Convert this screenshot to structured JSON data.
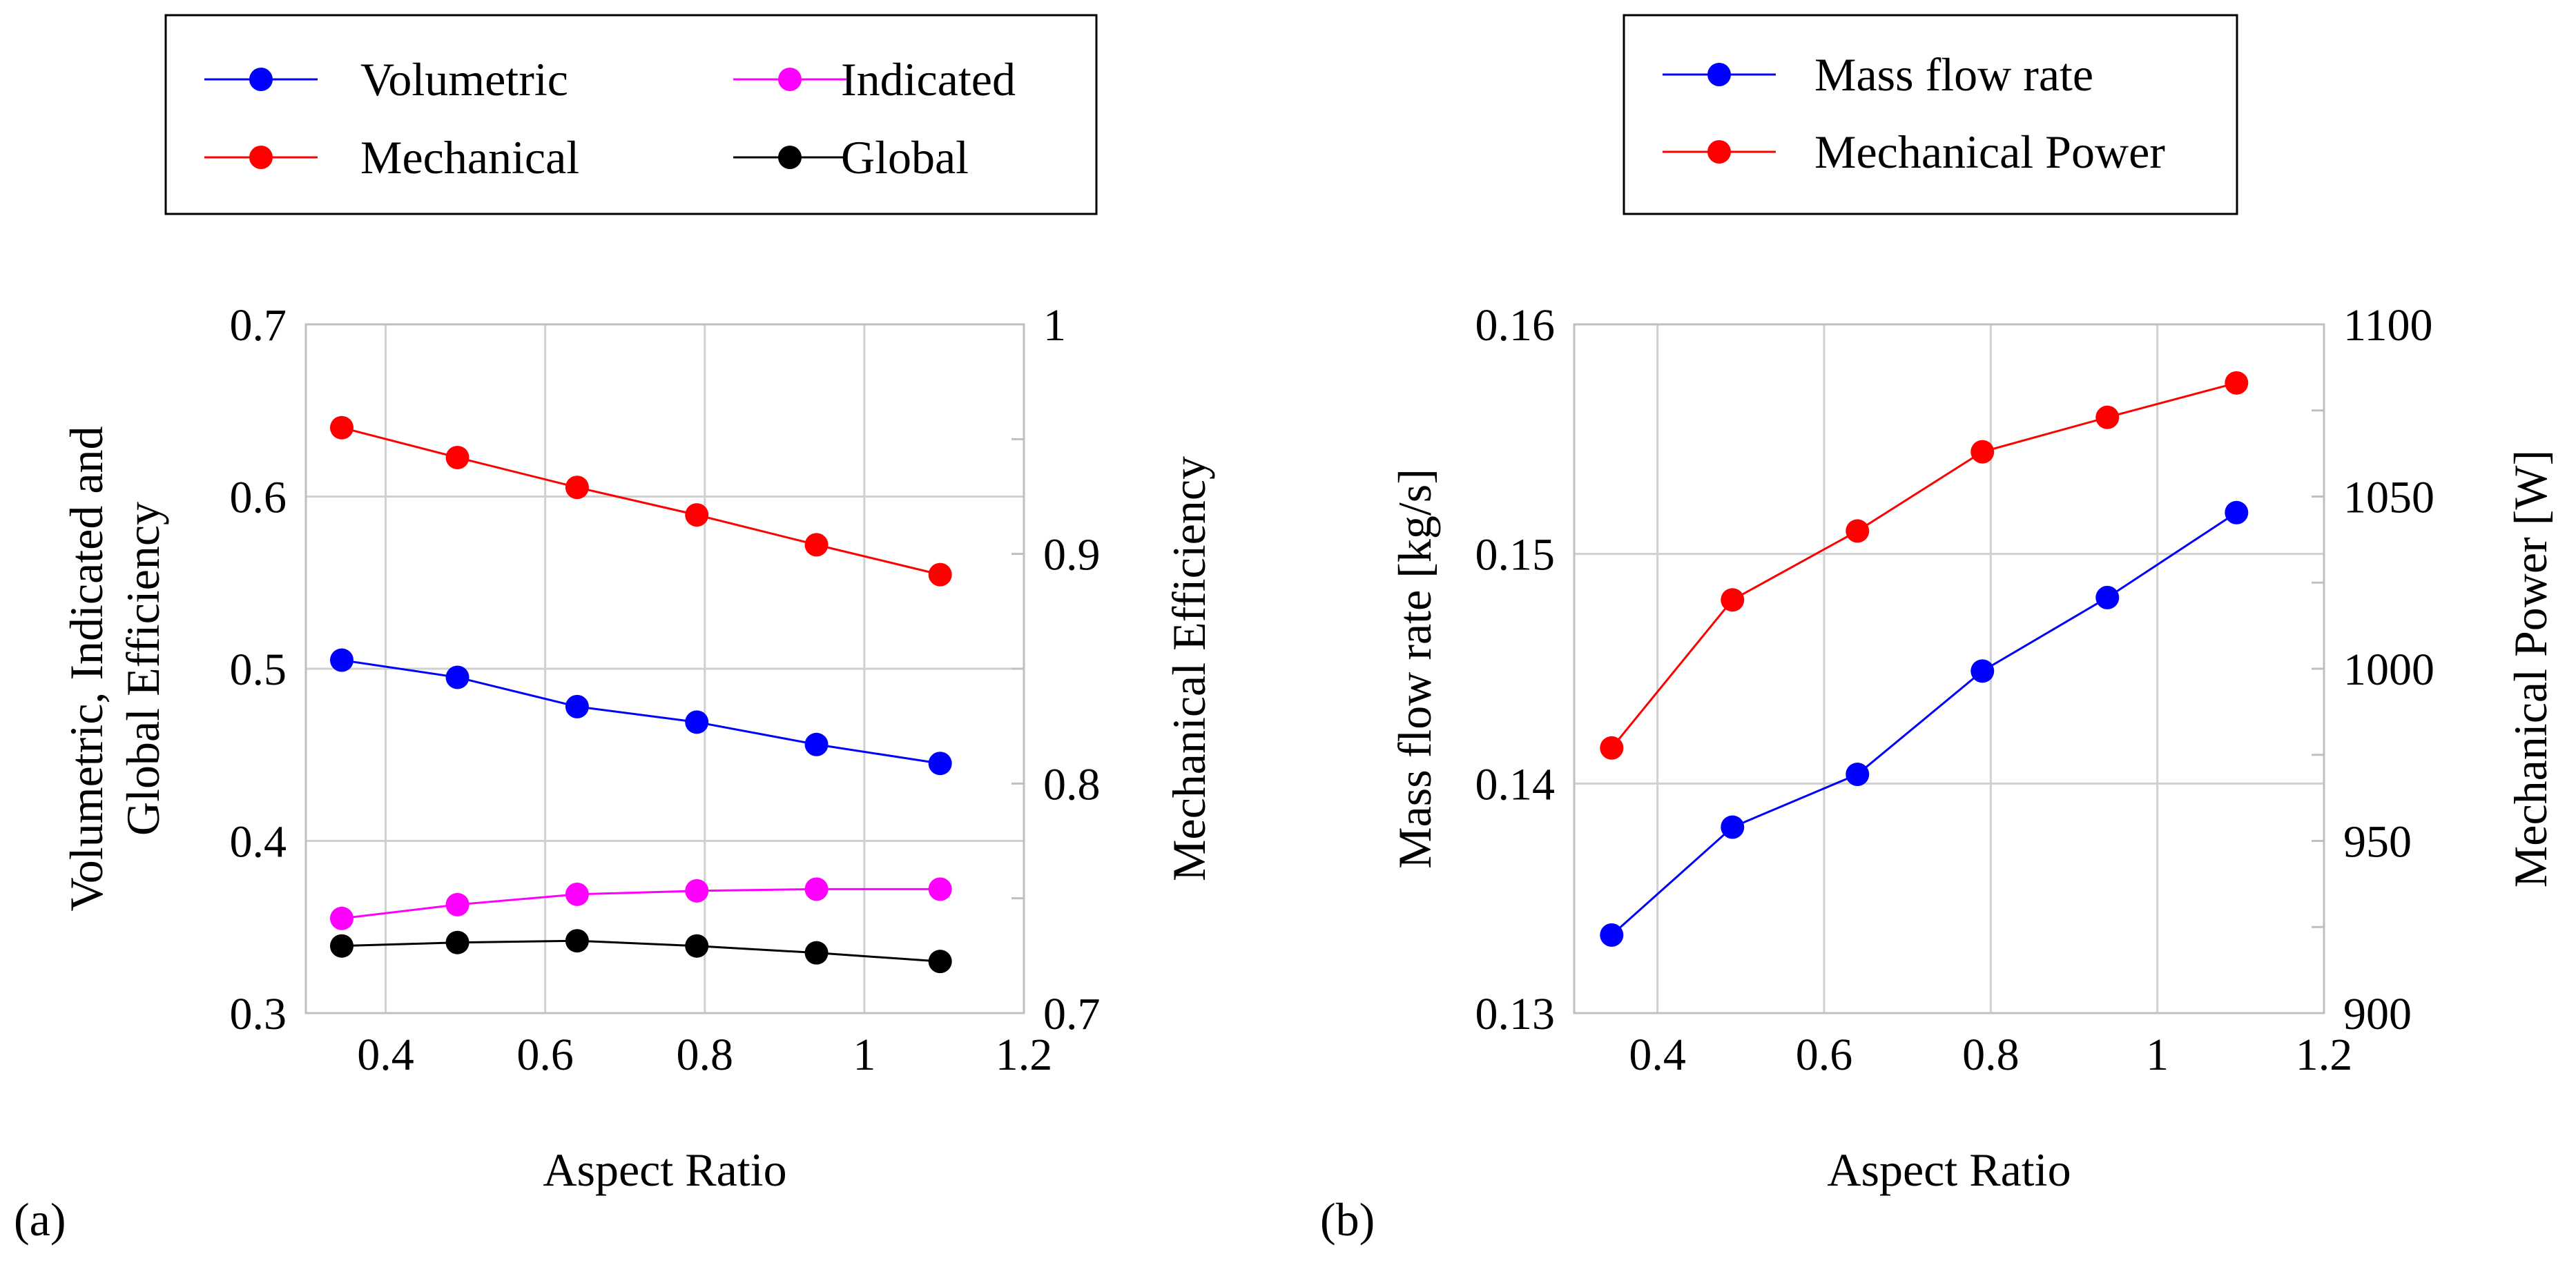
{
  "chart_data": [
    {
      "panel_label": "(a)",
      "type": "line",
      "xlabel": "Aspect Ratio",
      "ylabel_lines": [
        "Volumetric, Indicated and",
        "Global Efficiency"
      ],
      "y2label": "Mechanical Efficiency",
      "xlim": [
        0.3,
        1.2
      ],
      "ylim": [
        0.3,
        0.7
      ],
      "y2lim": [
        0.7,
        1.0
      ],
      "xticks": [
        "0.4",
        "0.6",
        "0.8",
        "1",
        "1.2"
      ],
      "yticks": [
        "0.3",
        "0.4",
        "0.5",
        "0.6",
        "0.7"
      ],
      "y2ticks": [
        "0.7",
        "0.8",
        "0.9",
        "1"
      ],
      "grid": true,
      "legend_position": "top",
      "x": [
        0.345,
        0.49,
        0.64,
        0.79,
        0.94,
        1.095
      ],
      "series": [
        {
          "name": "Volumetric",
          "axis": "left",
          "color": "#0000ff",
          "values": [
            0.505,
            0.495,
            0.478,
            0.469,
            0.456,
            0.445
          ]
        },
        {
          "name": "Indicated",
          "axis": "left",
          "color": "#ff00ff",
          "values": [
            0.355,
            0.363,
            0.369,
            0.371,
            0.372,
            0.372
          ]
        },
        {
          "name": "Mechanical",
          "axis": "right",
          "color": "#ff0000",
          "values": [
            0.955,
            0.942,
            0.929,
            0.917,
            0.904,
            0.891
          ]
        },
        {
          "name": "Global",
          "axis": "left",
          "color": "#000000",
          "values": [
            0.339,
            0.341,
            0.342,
            0.339,
            0.335,
            0.33
          ]
        }
      ]
    },
    {
      "panel_label": "(b)",
      "type": "line",
      "xlabel": "Aspect Ratio",
      "ylabel_lines": [
        "Mass flow rate [kg/s]"
      ],
      "y2label": "Mechanical Power [W]",
      "xlim": [
        0.3,
        1.2
      ],
      "ylim": [
        0.13,
        0.16
      ],
      "y2lim": [
        900,
        1100
      ],
      "xticks": [
        "0.4",
        "0.6",
        "0.8",
        "1",
        "1.2"
      ],
      "yticks": [
        "0.13",
        "0.14",
        "0.15",
        "0.16"
      ],
      "y2ticks": [
        "900",
        "950",
        "1000",
        "1050",
        "1100"
      ],
      "grid": true,
      "legend_position": "top",
      "x": [
        0.345,
        0.49,
        0.64,
        0.79,
        0.94,
        1.095
      ],
      "series": [
        {
          "name": "Mass flow rate",
          "axis": "left",
          "color": "#0000ff",
          "values": [
            0.1334,
            0.1381,
            0.1404,
            0.1449,
            0.1481,
            0.1518
          ]
        },
        {
          "name": "Mechanical Power",
          "axis": "right",
          "color": "#ff0000",
          "values": [
            977,
            1020,
            1040,
            1063,
            1073,
            1083
          ]
        }
      ]
    }
  ]
}
